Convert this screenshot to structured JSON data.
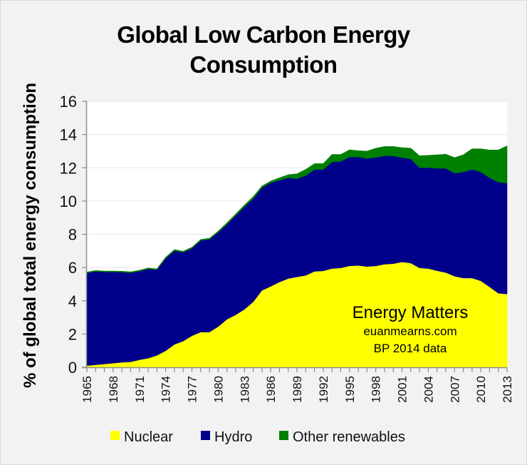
{
  "chart_data": {
    "type": "area",
    "stacked": true,
    "title": "Global Low Carbon Energy Consumption",
    "title_lines": [
      "Global Low Carbon Energy",
      "Consumption"
    ],
    "xlabel": "",
    "ylabel": "% of global total energy consumption",
    "ylim": [
      0,
      16
    ],
    "yticks": [
      0,
      2,
      4,
      6,
      8,
      10,
      12,
      14,
      16
    ],
    "xlim": [
      1965,
      2013
    ],
    "xtick_labels": [
      "1965",
      "1968",
      "1971",
      "1974",
      "1977",
      "1980",
      "1983",
      "1986",
      "1989",
      "1992",
      "1995",
      "1998",
      "2001",
      "2004",
      "2007",
      "2010",
      "2013"
    ],
    "grid": "horizontal",
    "legend_position": "bottom",
    "x": [
      1965,
      1966,
      1967,
      1968,
      1969,
      1970,
      1971,
      1972,
      1973,
      1974,
      1975,
      1976,
      1977,
      1978,
      1979,
      1980,
      1981,
      1982,
      1983,
      1984,
      1985,
      1986,
      1987,
      1988,
      1989,
      1990,
      1991,
      1992,
      1993,
      1994,
      1995,
      1996,
      1997,
      1998,
      1999,
      2000,
      2001,
      2002,
      2003,
      2004,
      2005,
      2006,
      2007,
      2008,
      2009,
      2010,
      2011,
      2012,
      2013
    ],
    "series": [
      {
        "name": "Nuclear",
        "color": "#FFFF00",
        "values": [
          0.1,
          0.15,
          0.2,
          0.25,
          0.3,
          0.33,
          0.45,
          0.55,
          0.72,
          1.0,
          1.38,
          1.58,
          1.9,
          2.12,
          2.12,
          2.45,
          2.89,
          3.16,
          3.49,
          3.94,
          4.63,
          4.87,
          5.13,
          5.34,
          5.44,
          5.53,
          5.77,
          5.8,
          5.94,
          5.98,
          6.1,
          6.13,
          6.06,
          6.1,
          6.2,
          6.23,
          6.34,
          6.27,
          5.98,
          5.94,
          5.81,
          5.7,
          5.48,
          5.37,
          5.37,
          5.2,
          4.84,
          4.46,
          4.41
        ]
      },
      {
        "name": "Hydro",
        "color": "#00008B",
        "values": [
          5.58,
          5.62,
          5.54,
          5.49,
          5.43,
          5.36,
          5.34,
          5.37,
          5.15,
          5.56,
          5.64,
          5.34,
          5.26,
          5.51,
          5.58,
          5.67,
          5.72,
          5.97,
          6.17,
          6.21,
          6.17,
          6.24,
          6.12,
          6.06,
          5.91,
          6.01,
          6.13,
          6.1,
          6.41,
          6.41,
          6.55,
          6.52,
          6.5,
          6.53,
          6.52,
          6.49,
          6.27,
          6.27,
          6.03,
          6.07,
          6.16,
          6.27,
          6.2,
          6.38,
          6.53,
          6.55,
          6.56,
          6.68,
          6.67
        ]
      },
      {
        "name": "Other renewables",
        "color": "#008000",
        "values": [
          0.05,
          0.05,
          0.05,
          0.05,
          0.05,
          0.05,
          0.05,
          0.05,
          0.05,
          0.06,
          0.06,
          0.06,
          0.06,
          0.06,
          0.06,
          0.07,
          0.08,
          0.09,
          0.1,
          0.11,
          0.1,
          0.09,
          0.15,
          0.18,
          0.29,
          0.36,
          0.35,
          0.35,
          0.45,
          0.41,
          0.43,
          0.38,
          0.44,
          0.55,
          0.56,
          0.56,
          0.6,
          0.64,
          0.71,
          0.74,
          0.81,
          0.85,
          0.93,
          1.03,
          1.24,
          1.39,
          1.67,
          1.93,
          2.24
        ]
      }
    ],
    "annotations": [
      "Energy Matters",
      "euanmearns.com",
      "BP 2014 data"
    ]
  }
}
